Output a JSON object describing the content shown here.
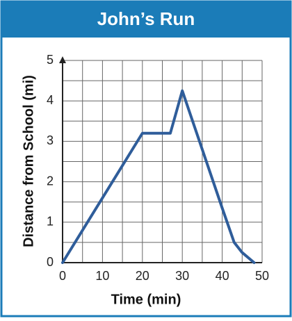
{
  "chart_data": {
    "type": "line",
    "title": "John’s Run",
    "x_label": "Time (min)",
    "y_label": "Distance from School (mi)",
    "x": [
      0,
      20,
      27,
      30,
      40,
      43,
      45,
      48
    ],
    "series": [
      {
        "color": "#2f5d9a",
        "values": [
          0,
          3.2,
          3.2,
          4.25,
          1.35,
          0.5,
          0.25,
          0
        ]
      }
    ],
    "xlim": [
      0,
      50
    ],
    "ylim": [
      0,
      5
    ],
    "xticks": [
      0,
      10,
      20,
      30,
      40,
      50
    ],
    "yticks": [
      0,
      1,
      2,
      3,
      4,
      5
    ],
    "xgrid": [
      0,
      5,
      10,
      15,
      20,
      25,
      30,
      35,
      40,
      45,
      50
    ],
    "ygrid": [
      0,
      0.5,
      1,
      1.5,
      2,
      2.5,
      3,
      3.5,
      4,
      4.5,
      5
    ],
    "grid": true
  }
}
